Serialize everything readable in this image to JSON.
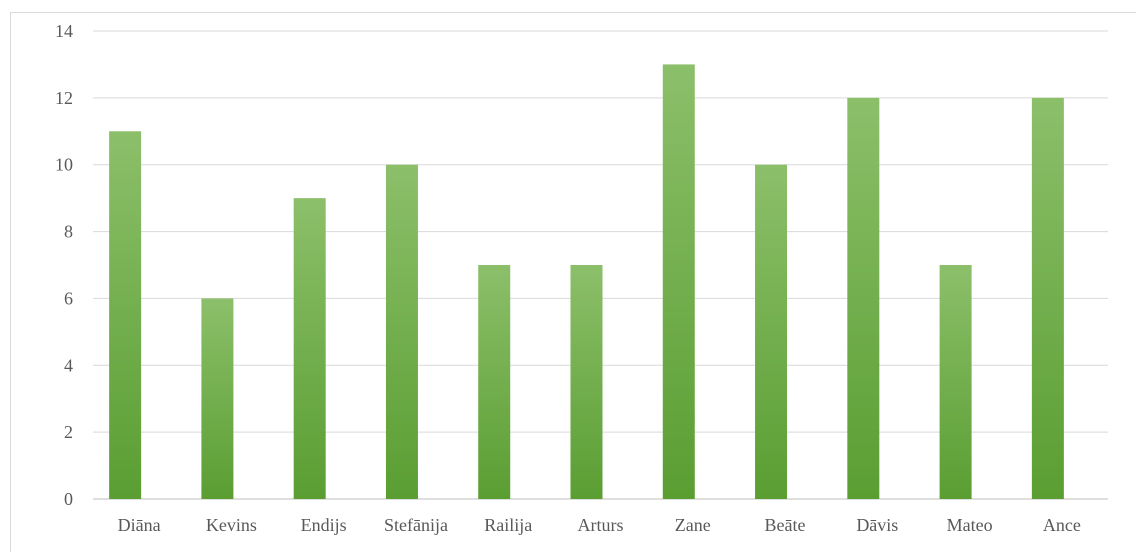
{
  "chart_data": {
    "type": "bar",
    "title": "",
    "xlabel": "",
    "ylabel": "",
    "categories": [
      "Diāna",
      "Kevins",
      "Endijs",
      "Stefānija",
      "Railija",
      "Arturs",
      "Zane",
      "Beāte",
      "Dāvis",
      "Mateo",
      "Ance"
    ],
    "values": [
      11,
      6,
      9,
      10,
      7,
      7,
      13,
      10,
      12,
      7,
      12
    ],
    "ylim": [
      0,
      14
    ],
    "yticks": [
      0,
      2,
      4,
      6,
      8,
      10,
      12,
      14
    ],
    "grid": true,
    "legend": "none",
    "colors": {
      "bar_top": "#8cbf6a",
      "bar_bottom": "#5a9e32",
      "grid": "#d9d9d9",
      "text": "#595959"
    }
  }
}
